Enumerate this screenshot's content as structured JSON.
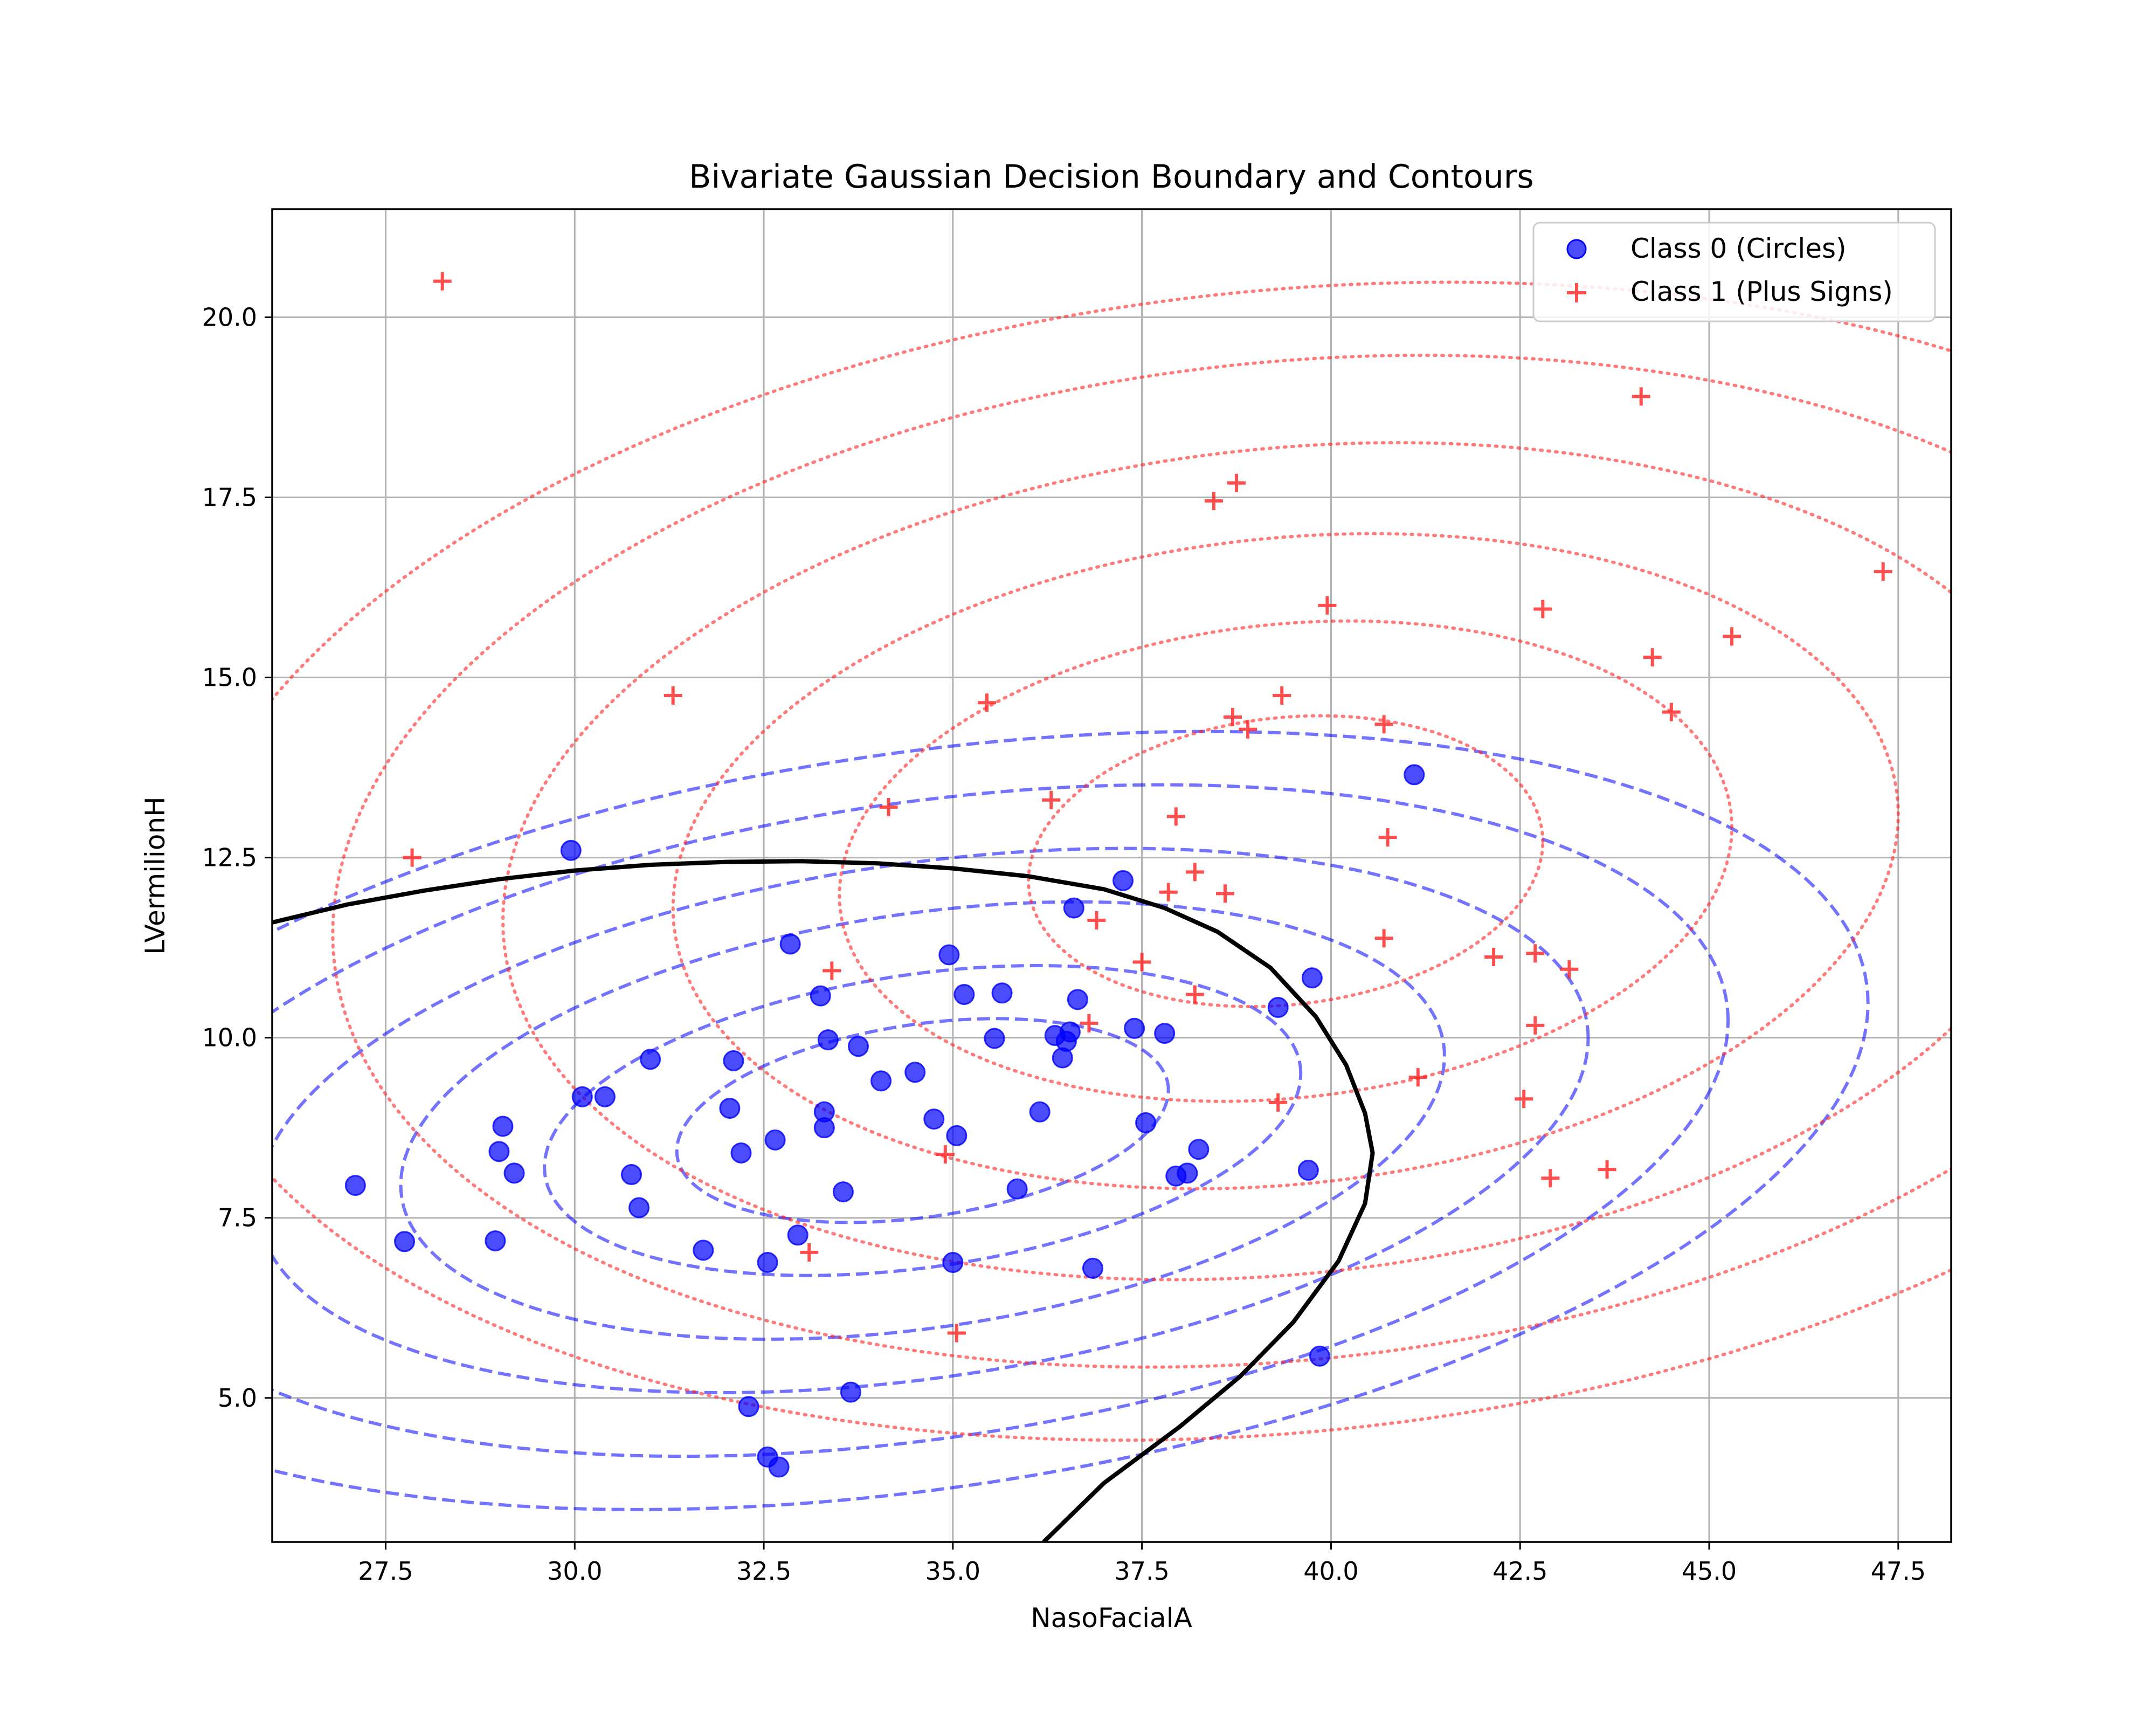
{
  "chart_data": {
    "type": "scatter",
    "title": "Bivariate Gaussian Decision Boundary and Contours",
    "xlabel": "NasoFacialA",
    "ylabel": "LVermilionH",
    "xlim": [
      26.0,
      48.2
    ],
    "ylim": [
      3.0,
      21.5
    ],
    "xticks": [
      27.5,
      30.0,
      32.5,
      35.0,
      37.5,
      40.0,
      42.5,
      45.0,
      47.5
    ],
    "xtick_labels": [
      "27.5",
      "30.0",
      "32.5",
      "35.0",
      "37.5",
      "40.0",
      "42.5",
      "45.0",
      "47.5"
    ],
    "yticks": [
      5.0,
      7.5,
      10.0,
      12.5,
      15.0,
      17.5,
      20.0
    ],
    "ytick_labels": [
      "5.0",
      "7.5",
      "10.0",
      "12.5",
      "15.0",
      "17.5",
      "20.0"
    ],
    "grid": true,
    "legend_position": "top-right",
    "colors": {
      "class0": "#0000ff",
      "class1": "#ff2222",
      "boundary": "#000000",
      "grid": "#b0b0b0"
    },
    "series": [
      {
        "name": "Class 0 (Circles)",
        "marker": "circle",
        "points": [
          [
            27.1,
            7.95
          ],
          [
            27.75,
            7.17
          ],
          [
            28.95,
            7.18
          ],
          [
            29.0,
            8.42
          ],
          [
            29.05,
            8.77
          ],
          [
            29.2,
            8.12
          ],
          [
            29.95,
            12.6
          ],
          [
            30.1,
            9.18
          ],
          [
            30.4,
            9.18
          ],
          [
            30.75,
            8.1
          ],
          [
            30.85,
            7.64
          ],
          [
            31.0,
            9.7
          ],
          [
            31.7,
            7.05
          ],
          [
            32.05,
            9.02
          ],
          [
            32.1,
            9.68
          ],
          [
            32.2,
            8.4
          ],
          [
            32.3,
            4.88
          ],
          [
            32.55,
            6.88
          ],
          [
            32.55,
            4.18
          ],
          [
            32.65,
            8.58
          ],
          [
            32.7,
            4.04
          ],
          [
            32.85,
            11.3
          ],
          [
            32.95,
            7.26
          ],
          [
            33.25,
            10.58
          ],
          [
            33.3,
            8.97
          ],
          [
            33.3,
            8.75
          ],
          [
            33.35,
            9.97
          ],
          [
            33.55,
            7.86
          ],
          [
            33.65,
            5.08
          ],
          [
            33.75,
            9.88
          ],
          [
            34.05,
            9.4
          ],
          [
            34.5,
            9.52
          ],
          [
            34.75,
            8.87
          ],
          [
            34.95,
            11.15
          ],
          [
            35.0,
            6.88
          ],
          [
            35.05,
            8.64
          ],
          [
            35.15,
            10.6
          ],
          [
            35.55,
            9.99
          ],
          [
            35.65,
            10.62
          ],
          [
            35.85,
            7.9
          ],
          [
            36.15,
            8.97
          ],
          [
            36.35,
            10.03
          ],
          [
            36.45,
            9.72
          ],
          [
            36.5,
            9.95
          ],
          [
            36.55,
            10.08
          ],
          [
            36.6,
            11.8
          ],
          [
            36.65,
            10.53
          ],
          [
            36.85,
            6.8
          ],
          [
            37.25,
            12.18
          ],
          [
            37.4,
            10.13
          ],
          [
            37.55,
            8.82
          ],
          [
            37.8,
            10.06
          ],
          [
            37.95,
            8.08
          ],
          [
            38.1,
            8.12
          ],
          [
            38.25,
            8.45
          ],
          [
            39.3,
            10.42
          ],
          [
            39.7,
            8.16
          ],
          [
            39.75,
            10.83
          ],
          [
            39.85,
            5.58
          ],
          [
            41.1,
            13.65
          ]
        ]
      },
      {
        "name": "Class 1 (Plus Signs)",
        "marker": "plus",
        "points": [
          [
            27.85,
            12.5
          ],
          [
            28.25,
            20.5
          ],
          [
            31.3,
            14.75
          ],
          [
            33.1,
            7.02
          ],
          [
            33.4,
            10.93
          ],
          [
            34.15,
            13.2
          ],
          [
            34.9,
            8.38
          ],
          [
            35.05,
            5.9
          ],
          [
            35.45,
            14.65
          ],
          [
            36.3,
            13.3
          ],
          [
            36.8,
            10.2
          ],
          [
            36.9,
            11.63
          ],
          [
            37.5,
            11.05
          ],
          [
            37.85,
            12.02
          ],
          [
            37.95,
            13.07
          ],
          [
            38.2,
            10.6
          ],
          [
            38.2,
            12.3
          ],
          [
            38.45,
            17.45
          ],
          [
            38.6,
            12.0
          ],
          [
            38.7,
            14.45
          ],
          [
            38.75,
            17.7
          ],
          [
            38.9,
            14.28
          ],
          [
            39.3,
            9.1
          ],
          [
            39.35,
            14.75
          ],
          [
            39.95,
            16.0
          ],
          [
            40.7,
            14.35
          ],
          [
            40.7,
            11.38
          ],
          [
            40.75,
            12.78
          ],
          [
            41.15,
            9.45
          ],
          [
            42.15,
            11.12
          ],
          [
            42.55,
            9.15
          ],
          [
            42.7,
            10.17
          ],
          [
            42.7,
            11.17
          ],
          [
            42.8,
            15.95
          ],
          [
            42.9,
            8.05
          ],
          [
            43.15,
            10.95
          ],
          [
            43.65,
            8.17
          ],
          [
            44.1,
            18.9
          ],
          [
            44.25,
            15.28
          ],
          [
            44.5,
            14.52
          ],
          [
            45.3,
            15.57
          ],
          [
            47.3,
            16.47
          ]
        ]
      }
    ],
    "contours": [
      {
        "class": "Class 0 (Circles)",
        "style": "dashed",
        "center": [
          34.6,
          8.85
        ],
        "rx": [
          3.25,
          5.0,
          6.9,
          8.8,
          10.65,
          12.5
        ],
        "ry": [
          1.35,
          2.05,
          2.9,
          3.6,
          4.45,
          5.15
        ],
        "tilt": 0.13
      },
      {
        "class": "Class 1 (Plus Signs)",
        "style": "dotted",
        "center": [
          39.4,
          12.45
        ],
        "rx": [
          3.4,
          5.9,
          8.1,
          10.35,
          12.6,
          14.75
        ],
        "ry": [
          2.0,
          3.3,
          4.5,
          5.75,
          6.95,
          7.95
        ],
        "tilt": 0.08
      }
    ],
    "decision_boundary": [
      [
        26.0,
        11.6
      ],
      [
        27.0,
        11.85
      ],
      [
        28.0,
        12.04
      ],
      [
        29.0,
        12.2
      ],
      [
        30.0,
        12.32
      ],
      [
        31.0,
        12.4
      ],
      [
        32.0,
        12.44
      ],
      [
        33.0,
        12.45
      ],
      [
        34.0,
        12.42
      ],
      [
        35.0,
        12.35
      ],
      [
        36.0,
        12.24
      ],
      [
        37.0,
        12.06
      ],
      [
        37.8,
        11.8
      ],
      [
        38.5,
        11.47
      ],
      [
        39.2,
        10.97
      ],
      [
        39.8,
        10.29
      ],
      [
        40.2,
        9.62
      ],
      [
        40.45,
        8.95
      ],
      [
        40.55,
        8.4
      ],
      [
        40.45,
        7.7
      ],
      [
        40.1,
        6.9
      ],
      [
        39.5,
        6.05
      ],
      [
        38.8,
        5.3
      ],
      [
        38.0,
        4.6
      ],
      [
        37.0,
        3.82
      ],
      [
        36.2,
        3.0
      ]
    ]
  }
}
